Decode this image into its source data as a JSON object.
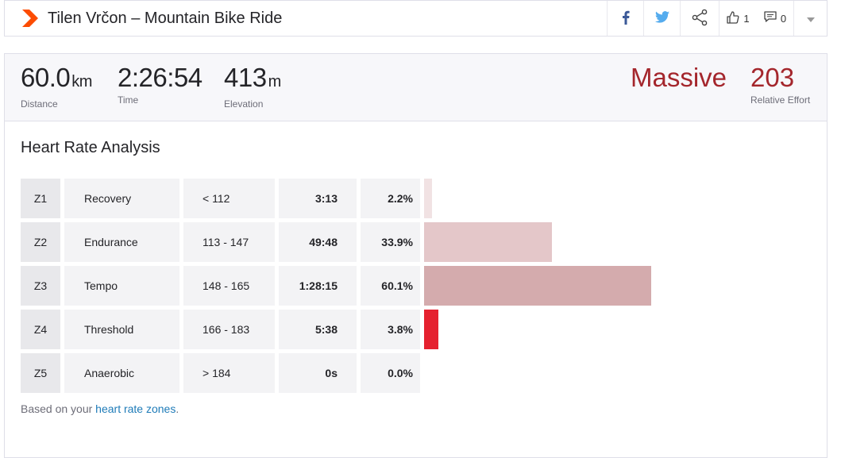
{
  "header": {
    "title": "Tilen Vrčon – Mountain Bike Ride",
    "kudos_count": "1",
    "comments_count": "0"
  },
  "stats": {
    "distance": {
      "value": "60.0",
      "unit": "km",
      "label": "Distance"
    },
    "time": {
      "value": "2:26:54",
      "label": "Time"
    },
    "elevation": {
      "value": "413",
      "unit": "m",
      "label": "Elevation"
    },
    "effort_word": "Massive",
    "relative_effort": {
      "value": "203",
      "label": "Relative Effort"
    }
  },
  "analysis": {
    "title": "Heart Rate Analysis",
    "zones": [
      {
        "zone": "Z1",
        "name": "Recovery",
        "range": "< 112",
        "time": "3:13",
        "pct": "2.2%",
        "fraction": 0.022,
        "color": "#f1e2e3"
      },
      {
        "zone": "Z2",
        "name": "Endurance",
        "range": "113 - 147",
        "time": "49:48",
        "pct": "33.9%",
        "fraction": 0.339,
        "color": "#e4c7c9"
      },
      {
        "zone": "Z3",
        "name": "Tempo",
        "range": "148 - 165",
        "time": "1:28:15",
        "pct": "60.1%",
        "fraction": 0.601,
        "color": "#d4abad"
      },
      {
        "zone": "Z4",
        "name": "Threshold",
        "range": "166 - 183",
        "time": "5:38",
        "pct": "3.8%",
        "fraction": 0.038,
        "color": "#e5212f"
      },
      {
        "zone": "Z5",
        "name": "Anaerobic",
        "range": "> 184",
        "time": "0s",
        "pct": "0.0%",
        "fraction": 0.0,
        "color": "#e5212f"
      }
    ],
    "note_prefix": "Based on your ",
    "note_link": "heart rate zones",
    "note_suffix": "."
  },
  "colors": {
    "accent_red": "#a4262c",
    "brand_orange": "#fc4c02",
    "link_blue": "#1e7bb8",
    "facebook_blue": "#3b5998",
    "twitter_blue": "#55acee"
  }
}
